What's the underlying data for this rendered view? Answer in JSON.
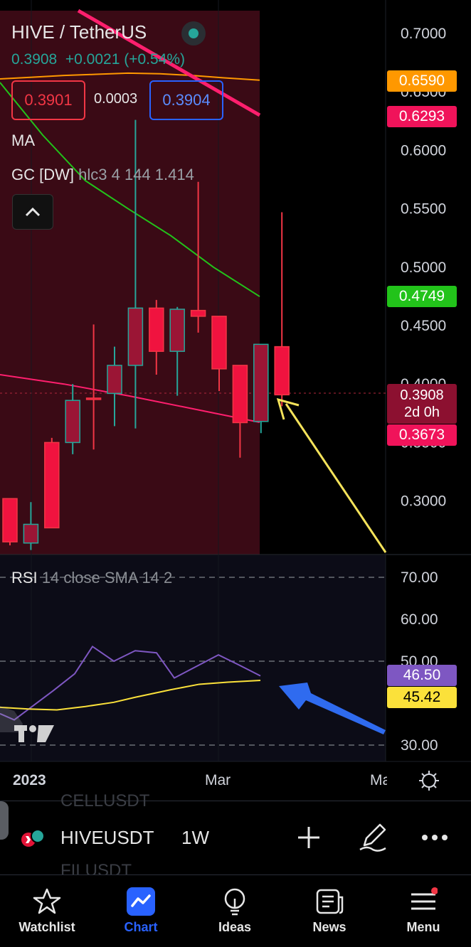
{
  "legend": {
    "pair": "HIVE / TetherUS",
    "last": "0.3908",
    "change": "+0.0021 (+0.54%)",
    "bid": "0.3901",
    "spread": "0.0003",
    "ask": "0.3904",
    "ma": "MA",
    "gc_name": "GC [DW]",
    "gc_params": "hlc3 4 144 1.414"
  },
  "rsi": {
    "name": "RSI",
    "params": "14 close SMA 14 2"
  },
  "price_axis": [
    "0.7000",
    "0.6500",
    "0.6000",
    "0.5500",
    "0.5000",
    "0.4500",
    "0.4000",
    "0.3500",
    "0.3000"
  ],
  "price_tags": {
    "orange": "0.6590",
    "pink_top": "0.6293",
    "green": "0.4749",
    "last": "0.3908",
    "countdown": "2d 0h",
    "pink_low": "0.3673"
  },
  "rsi_axis": [
    "70.00",
    "60.00",
    "50.00",
    "30.00"
  ],
  "rsi_tags": {
    "rsi": "46.50",
    "sma": "45.42"
  },
  "time_axis": {
    "left": "2023",
    "mid": "Mar",
    "right": "Ma"
  },
  "toolbar": {
    "symbol": "HIVEUSDT",
    "interval": "1W",
    "ghost_above": "CELLUSDT",
    "ghost_below": "FILUSDT"
  },
  "nav": {
    "watchlist": "Watchlist",
    "chart": "Chart",
    "ideas": "Ideas",
    "news": "News",
    "menu": "Menu"
  },
  "colors": {
    "up": "#26a69a",
    "down": "#f23645",
    "candle_down_fill": "#9b1535",
    "accent": "#2962ff",
    "rsi_line": "#7e57c2",
    "rsi_sma": "#fbe13a",
    "ma_orange": "#ff9800",
    "ma_green": "#22c31a",
    "ma_pink": "#ff1f6e"
  },
  "chart_data": {
    "type": "candlestick",
    "series": [
      {
        "name": "candles",
        "values": [
          {
            "o": 0.302,
            "h": 0.302,
            "l": 0.262,
            "c": 0.265
          },
          {
            "o": 0.264,
            "h": 0.299,
            "l": 0.258,
            "c": 0.28
          },
          {
            "o": 0.35,
            "h": 0.354,
            "l": 0.277,
            "c": 0.277
          },
          {
            "o": 0.35,
            "h": 0.4,
            "l": 0.34,
            "c": 0.386
          },
          {
            "o": 0.388,
            "h": 0.451,
            "l": 0.344,
            "c": 0.387
          },
          {
            "o": 0.392,
            "h": 0.432,
            "l": 0.364,
            "c": 0.416
          },
          {
            "o": 0.416,
            "h": 0.626,
            "l": 0.362,
            "c": 0.465
          },
          {
            "o": 0.465,
            "h": 0.472,
            "l": 0.408,
            "c": 0.428
          },
          {
            "o": 0.428,
            "h": 0.466,
            "l": 0.39,
            "c": 0.464
          },
          {
            "o": 0.463,
            "h": 0.573,
            "l": 0.444,
            "c": 0.458
          },
          {
            "o": 0.458,
            "h": 0.458,
            "l": 0.394,
            "c": 0.413
          },
          {
            "o": 0.416,
            "h": 0.416,
            "l": 0.337,
            "c": 0.367
          },
          {
            "o": 0.368,
            "h": 0.434,
            "l": 0.358,
            "c": 0.434
          },
          {
            "o": 0.432,
            "h": 0.547,
            "l": 0.381,
            "c": 0.3908
          }
        ]
      },
      {
        "name": "MA orange",
        "values": [
          0.6611,
          0.6625,
          0.664,
          0.665,
          0.666,
          0.6655,
          0.664,
          0.662,
          0.66
        ]
      },
      {
        "name": "MA green",
        "values": [
          0.658,
          0.613,
          0.574,
          0.55,
          0.527,
          0.5,
          0.4749
        ]
      },
      {
        "name": "MA pink",
        "values": [
          0.408,
          0.4,
          0.39,
          0.379,
          0.3673
        ]
      },
      {
        "name": "RSI",
        "values": [
          37.5,
          36.0,
          43.0,
          47.0,
          53.5,
          50.0,
          52.5,
          52.0,
          46.0,
          51.5,
          49.0,
          46.5
        ]
      },
      {
        "name": "RSI SMA",
        "values": [
          39.0,
          38.6,
          38.4,
          39.2,
          40.2,
          41.4,
          43.2,
          44.5,
          45.0,
          45.42
        ]
      }
    ],
    "y_range": [
      0.25,
      0.72
    ],
    "rsi_range": [
      30,
      70
    ]
  }
}
